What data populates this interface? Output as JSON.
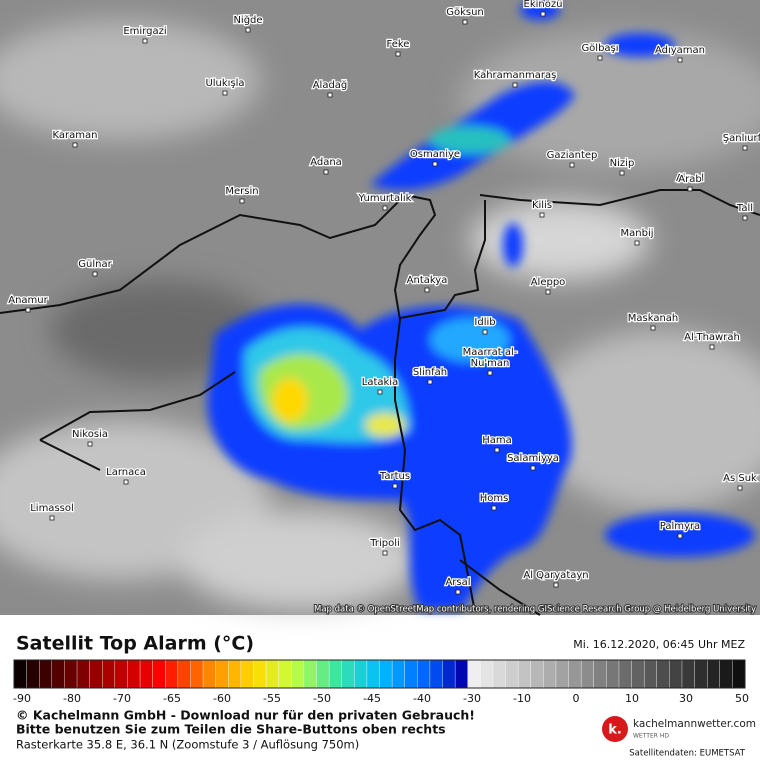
{
  "map": {
    "attribution": "Map data © OpenStreetMap contributors, rendering GIScience Research Group @ Heidelberg University",
    "cities": [
      {
        "name": "Niğde"
      },
      {
        "name": "Emirgazi"
      },
      {
        "name": "Göksun"
      },
      {
        "name": "Ekinözü"
      },
      {
        "name": "Feke"
      },
      {
        "name": "Gölbaşı"
      },
      {
        "name": "Adıyaman"
      },
      {
        "name": "Ulukışla"
      },
      {
        "name": "Aladağ"
      },
      {
        "name": "Kahramanmaraş"
      },
      {
        "name": "Karaman"
      },
      {
        "name": "Şanlıurfa"
      },
      {
        "name": "Osmaniye"
      },
      {
        "name": "Gaziantep"
      },
      {
        "name": "Nizip"
      },
      {
        "name": "Ain al"
      },
      {
        "name": "Arab"
      },
      {
        "name": "Adana"
      },
      {
        "name": "Mersin"
      },
      {
        "name": "Yumurtalık"
      },
      {
        "name": "Kilis"
      },
      {
        "name": "Tall"
      },
      {
        "name": "Manbij"
      },
      {
        "name": "Gülnar"
      },
      {
        "name": "Antakya"
      },
      {
        "name": "Aleppo"
      },
      {
        "name": "Anamur"
      },
      {
        "name": "Idlib"
      },
      {
        "name": "Maskanah"
      },
      {
        "name": "Al-Thawrah"
      },
      {
        "name": "Maarrat al-"
      },
      {
        "name": "Nu'man"
      },
      {
        "name": "Slinfah"
      },
      {
        "name": "Latakia"
      },
      {
        "name": "Nikosia"
      },
      {
        "name": "Hama"
      },
      {
        "name": "Salamiyya"
      },
      {
        "name": "Larnaca"
      },
      {
        "name": "As Suk"
      },
      {
        "name": "Tartus"
      },
      {
        "name": "Homs"
      },
      {
        "name": "Limassol"
      },
      {
        "name": "Palmyra"
      },
      {
        "name": "Tripoli"
      },
      {
        "name": "Arsal"
      },
      {
        "name": "Al Qaryatayn"
      }
    ]
  },
  "legend": {
    "title": "Satellit Top Alarm (°C)",
    "timestamp": "Mi. 16.12.2020, 06:45 Uhr MEZ",
    "ticks": [
      -90,
      -80,
      -70,
      -65,
      -60,
      -55,
      -50,
      -45,
      -40,
      -30,
      -10,
      0,
      10,
      30,
      50
    ]
  },
  "footer": {
    "lines": [
      "© Kachelmann GmbH - Download nur für den privaten Gebrauch!",
      "Bitte benutzen Sie zum Teilen die Share-Buttons oben rechts",
      "Rasterkarte 35.8 E, 36.1 N (Zoomstufe 3 / Auflösung 750m)"
    ],
    "logo": {
      "mark": "k.",
      "name": "kachelmannwetter.com",
      "tagline": "WETTER HD"
    },
    "source": "Satellitendaten: EUMETSAT"
  }
}
